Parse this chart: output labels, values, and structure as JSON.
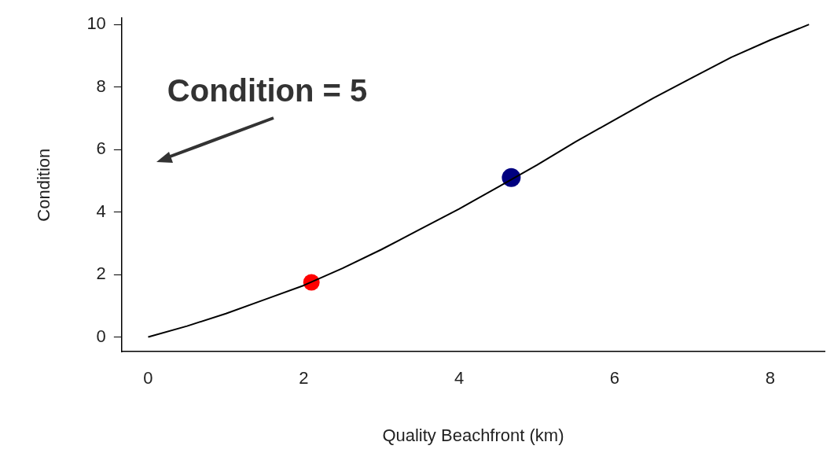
{
  "chart_data": {
    "type": "line",
    "xlabel": "Quality Beachfront (km)",
    "ylabel": "Condition",
    "xlim": [
      -0.34,
      8.7
    ],
    "ylim": [
      -0.47,
      10.2
    ],
    "xticks": [
      0,
      2,
      4,
      6,
      8
    ],
    "yticks": [
      0,
      2,
      4,
      6,
      8,
      10
    ],
    "grid": false,
    "legend": false,
    "series": [
      {
        "color": "#000000",
        "marker": "none",
        "x": [
          0,
          0.5,
          1,
          1.5,
          2,
          2.5,
          3,
          3.5,
          4,
          4.5,
          5,
          5.5,
          6,
          6.5,
          7,
          7.5,
          8,
          8.5
        ],
        "values": [
          0,
          0.35,
          0.75,
          1.2,
          1.65,
          2.2,
          2.8,
          3.45,
          4.1,
          4.8,
          5.5,
          6.25,
          6.95,
          7.65,
          8.3,
          8.95,
          9.5,
          10
        ]
      },
      {
        "type": "scatter",
        "color": "#ff0000",
        "marker": "circle",
        "x": [
          2.1
        ],
        "values": [
          1.75
        ]
      },
      {
        "type": "scatter",
        "color": "#000080",
        "marker": "circle",
        "x": [
          4.67
        ],
        "values": [
          5.1
        ]
      }
    ],
    "annotations": [
      "Condition = 5"
    ]
  }
}
